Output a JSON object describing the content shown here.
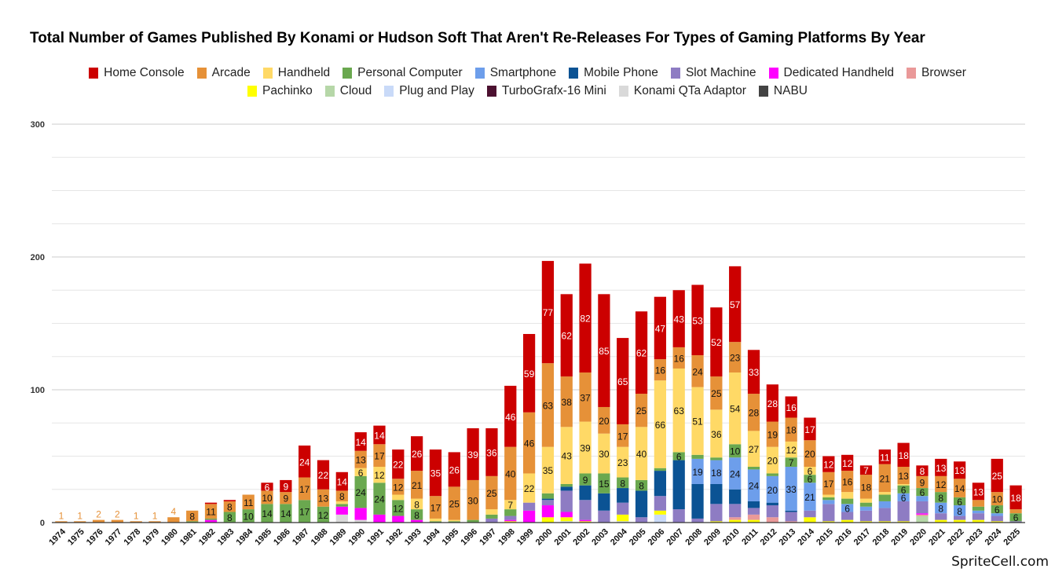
{
  "chart_data": {
    "type": "bar",
    "stacked": true,
    "title": "Total Number of Games Published By Konami or Hudson Soft That Aren't Re-Releases For Types of Gaming Platforms By Year",
    "xlabel": "",
    "ylabel": "",
    "ylim": [
      0,
      300
    ],
    "yticks": [
      0,
      100,
      200,
      300
    ],
    "grid": true,
    "legend_position": "top",
    "categories": [
      "1974",
      "1975",
      "1976",
      "1977",
      "1978",
      "1979",
      "1980",
      "1981",
      "1982",
      "1983",
      "1984",
      "1985",
      "1986",
      "1987",
      "1988",
      "1989",
      "1990",
      "1991",
      "1992",
      "1993",
      "1994",
      "1995",
      "1996",
      "1997",
      "1998",
      "1999",
      "2000",
      "2001",
      "2002",
      "2003",
      "2004",
      "2005",
      "2006",
      "2007",
      "2008",
      "2009",
      "2010",
      "2011",
      "2012",
      "2013",
      "2014",
      "2015",
      "2016",
      "2017",
      "2018",
      "2019",
      "2020",
      "2021",
      "2022",
      "2023",
      "2024",
      "2025"
    ],
    "series": [
      {
        "name": "NABU",
        "color": "#434343",
        "values": [
          0,
          0,
          0,
          0,
          0,
          0,
          0,
          0,
          0,
          0,
          0,
          0,
          0,
          0,
          0,
          0,
          0,
          0,
          0,
          0,
          0,
          0,
          0,
          0,
          0,
          0,
          0,
          0,
          0,
          0,
          0,
          0,
          0,
          0,
          0,
          0,
          0,
          0,
          0,
          0,
          0,
          0,
          0,
          0,
          0,
          0,
          0,
          0,
          0,
          0,
          0,
          0
        ]
      },
      {
        "name": "Konami QTa Adaptor",
        "color": "#d9d9d9",
        "values": [
          0,
          0,
          0,
          0,
          0,
          0,
          0,
          0,
          0,
          0,
          0,
          0,
          0,
          0,
          0,
          6,
          2,
          0,
          0,
          0,
          0,
          0,
          0,
          0,
          0,
          0,
          0,
          0,
          0,
          0,
          0,
          0,
          0,
          0,
          0,
          0,
          0,
          0,
          0,
          0,
          0,
          0,
          0,
          0,
          0,
          0,
          0,
          0,
          0,
          0,
          0,
          0
        ]
      },
      {
        "name": "TurboGrafx-16 Mini",
        "color": "#4c1130",
        "values": [
          0,
          0,
          0,
          0,
          0,
          0,
          0,
          0,
          0,
          0,
          0,
          0,
          0,
          0,
          0,
          0,
          0,
          0,
          0,
          0,
          0,
          0,
          0,
          0,
          0,
          0,
          0,
          0,
          0,
          0,
          0,
          0,
          0,
          0,
          0,
          0,
          0,
          0,
          0,
          0,
          0,
          0,
          0,
          0,
          0,
          0,
          0,
          0,
          0,
          0,
          0,
          0
        ]
      },
      {
        "name": "Plug and Play",
        "color": "#c9daf8",
        "values": [
          0,
          0,
          0,
          0,
          0,
          0,
          0,
          0,
          0,
          0,
          0,
          0,
          0,
          0,
          0,
          0,
          0,
          0,
          0,
          0,
          0,
          0,
          0,
          0,
          0,
          0,
          0,
          1,
          0,
          0,
          1,
          0,
          6,
          0,
          0,
          0,
          0,
          0,
          0,
          0,
          0,
          0,
          0,
          0,
          0,
          0,
          0,
          0,
          0,
          0,
          0,
          0
        ]
      },
      {
        "name": "Cloud",
        "color": "#b6d7a8",
        "values": [
          0,
          0,
          0,
          0,
          0,
          0,
          0,
          0,
          0,
          0,
          0,
          0,
          0,
          0,
          0,
          0,
          0,
          0,
          0,
          0,
          0,
          0,
          0,
          0,
          0,
          0,
          0,
          0,
          0,
          0,
          0,
          0,
          0,
          0,
          0,
          0,
          0,
          0,
          0,
          0,
          0,
          0,
          0,
          0,
          0,
          0,
          5,
          0,
          0,
          0,
          0,
          0
        ]
      },
      {
        "name": "Pachinko",
        "color": "#ffff00",
        "values": [
          0,
          0,
          0,
          0,
          0,
          0,
          0,
          0,
          0,
          0,
          0,
          0,
          0,
          0,
          0,
          0,
          0,
          0,
          0,
          0,
          0,
          0,
          0,
          0,
          1,
          0,
          4,
          3,
          1,
          0,
          5,
          0,
          3,
          0,
          0,
          1,
          2,
          2,
          0,
          0,
          4,
          1,
          2,
          1,
          1,
          1,
          0,
          2,
          2,
          2,
          1,
          0
        ]
      },
      {
        "name": "Browser",
        "color": "#ea9999",
        "values": [
          0,
          0,
          0,
          0,
          0,
          0,
          0,
          0,
          0,
          0,
          0,
          0,
          0,
          0,
          0,
          0,
          0,
          0,
          0,
          0,
          0,
          0,
          0,
          0,
          0,
          0,
          0,
          0,
          0,
          0,
          0,
          0,
          0,
          0,
          0,
          0,
          2,
          4,
          4,
          1,
          0,
          0,
          0,
          0,
          0,
          0,
          1,
          0,
          0,
          0,
          0,
          0
        ]
      },
      {
        "name": "Dedicated Handheld",
        "color": "#ff00ff",
        "values": [
          0,
          0,
          0,
          0,
          0,
          0,
          0,
          0,
          2,
          0,
          0,
          0,
          0,
          0,
          0,
          6,
          9,
          6,
          5,
          2,
          0,
          0,
          0,
          0,
          1,
          9,
          9,
          4,
          1,
          0,
          0,
          0,
          0,
          0,
          0,
          0,
          0,
          0,
          0,
          0,
          0,
          0,
          0,
          0,
          0,
          0,
          1,
          0,
          0,
          0,
          0,
          0
        ]
      },
      {
        "name": "Slot Machine",
        "color": "#8e7cc3",
        "values": [
          0,
          0,
          0,
          0,
          0,
          0,
          0,
          0,
          0,
          0,
          0,
          0,
          0,
          0,
          0,
          0,
          0,
          0,
          0,
          0,
          0,
          0,
          0,
          3,
          3,
          6,
          4,
          16,
          15,
          9,
          9,
          4,
          11,
          10,
          3,
          13,
          10,
          5,
          9,
          7,
          5,
          13,
          6,
          8,
          10,
          15,
          9,
          5,
          3,
          5,
          4,
          1
        ]
      },
      {
        "name": "Mobile Phone",
        "color": "#0b5394",
        "values": [
          0,
          0,
          0,
          0,
          0,
          0,
          0,
          0,
          0,
          0,
          0,
          0,
          0,
          0,
          0,
          0,
          0,
          0,
          0,
          0,
          0,
          0,
          0,
          0,
          0,
          0,
          1,
          3,
          11,
          13,
          11,
          20,
          19,
          37,
          26,
          15,
          11,
          5,
          2,
          1,
          0,
          0,
          0,
          0,
          0,
          0,
          0,
          0,
          0,
          0,
          0,
          0
        ]
      },
      {
        "name": "Smartphone",
        "color": "#6d9eeb",
        "values": [
          0,
          0,
          0,
          0,
          0,
          0,
          0,
          0,
          0,
          0,
          0,
          0,
          0,
          0,
          0,
          0,
          0,
          0,
          0,
          0,
          0,
          0,
          0,
          0,
          0,
          0,
          0,
          0,
          0,
          0,
          0,
          0,
          0,
          0,
          19,
          18,
          24,
          24,
          20,
          33,
          21,
          3,
          6,
          3,
          5,
          6,
          4,
          8,
          8,
          2,
          2,
          0
        ]
      },
      {
        "name": "Personal Computer",
        "color": "#6aa84f",
        "values": [
          0,
          0,
          0,
          0,
          0,
          0,
          0,
          1,
          1,
          8,
          10,
          14,
          14,
          17,
          12,
          2,
          24,
          24,
          12,
          8,
          1,
          1,
          2,
          3,
          5,
          0,
          4,
          2,
          9,
          15,
          8,
          8,
          2,
          6,
          3,
          2,
          10,
          2,
          2,
          7,
          6,
          2,
          4,
          3,
          5,
          6,
          6,
          8,
          6,
          3,
          6,
          6
        ]
      },
      {
        "name": "Handheld",
        "color": "#ffd966",
        "values": [
          0,
          0,
          0,
          0,
          0,
          0,
          0,
          0,
          0,
          0,
          0,
          0,
          0,
          0,
          0,
          2,
          6,
          12,
          4,
          8,
          2,
          1,
          0,
          4,
          7,
          22,
          35,
          43,
          39,
          30,
          23,
          40,
          66,
          63,
          51,
          36,
          54,
          27,
          20,
          12,
          6,
          2,
          5,
          3,
          2,
          1,
          0,
          0,
          0,
          0,
          0,
          0
        ]
      },
      {
        "name": "Arcade",
        "color": "#e69138",
        "values": [
          1,
          1,
          2,
          2,
          1,
          1,
          4,
          8,
          11,
          8,
          11,
          10,
          9,
          17,
          13,
          8,
          13,
          17,
          12,
          21,
          17,
          25,
          30,
          25,
          40,
          46,
          63,
          38,
          37,
          20,
          17,
          25,
          16,
          16,
          24,
          25,
          23,
          28,
          19,
          18,
          20,
          17,
          16,
          18,
          21,
          13,
          9,
          12,
          14,
          5,
          10,
          3
        ]
      },
      {
        "name": "Home Console",
        "color": "#cc0000",
        "values": [
          0,
          0,
          0,
          0,
          0,
          0,
          0,
          0,
          1,
          1,
          0,
          6,
          9,
          24,
          22,
          14,
          14,
          14,
          22,
          26,
          35,
          26,
          39,
          36,
          46,
          59,
          77,
          62,
          82,
          85,
          65,
          62,
          47,
          43,
          53,
          52,
          57,
          33,
          28,
          16,
          17,
          12,
          12,
          7,
          11,
          18,
          8,
          13,
          13,
          13,
          25,
          18
        ]
      }
    ]
  },
  "legend": {
    "row1": [
      "Home Console",
      "Arcade",
      "Handheld",
      "Personal Computer",
      "Smartphone",
      "Mobile Phone",
      "Slot Machine",
      "Dedicated Handheld",
      "Browser"
    ],
    "row2": [
      "Pachinko",
      "Cloud",
      "Plug and Play",
      "TurboGrafx-16 Mini",
      "Konami QTa Adaptor",
      "NABU"
    ]
  },
  "watermark": "SpriteCell.com"
}
